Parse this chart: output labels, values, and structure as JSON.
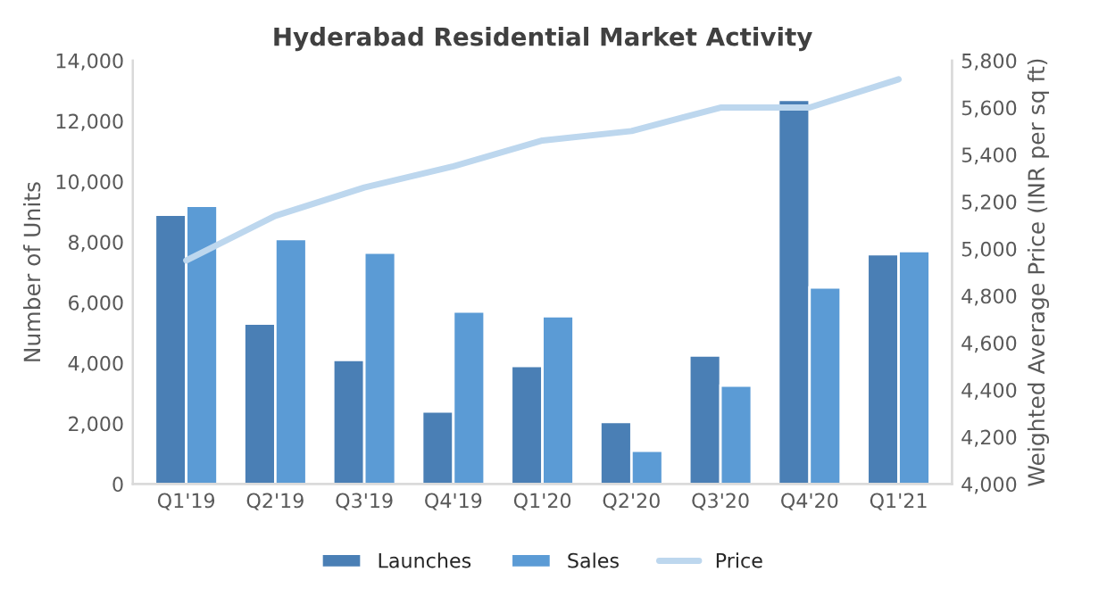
{
  "chart_data": {
    "type": "bar",
    "title": "Hyderabad Residential Market Activity",
    "ylabel": "Number of Units",
    "y2label": "Weighted Average Price (INR per sq ft)",
    "categories": [
      "Q1'19",
      "Q2'19",
      "Q3'19",
      "Q4'19",
      "Q1'20",
      "Q2'20",
      "Q3'20",
      "Q4'20",
      "Q1'21"
    ],
    "series": [
      {
        "name": "Launches",
        "color": "#4a7fb5",
        "values": [
          8900,
          5300,
          4100,
          2400,
          3900,
          2050,
          4250,
          12700,
          7600
        ]
      },
      {
        "name": "Sales",
        "color": "#5b9bd5",
        "values": [
          9200,
          8100,
          7650,
          5700,
          5550,
          1100,
          3250,
          6500,
          7700
        ]
      },
      {
        "name": "Price",
        "type": "line",
        "axis": "y2",
        "color": "#bdd7ee",
        "values": [
          4950,
          5140,
          5260,
          5350,
          5460,
          5500,
          5600,
          5600,
          5720
        ]
      }
    ],
    "ylim": [
      0,
      14000
    ],
    "yticks": [
      {
        "value": 0,
        "label": "0"
      },
      {
        "value": 2000,
        "label": "2,000"
      },
      {
        "value": 4000,
        "label": "4,000"
      },
      {
        "value": 6000,
        "label": "6,000"
      },
      {
        "value": 8000,
        "label": "8,000"
      },
      {
        "value": 10000,
        "label": "10,000"
      },
      {
        "value": 12000,
        "label": "12,000"
      },
      {
        "value": 14000,
        "label": "14,000"
      }
    ],
    "y2lim": [
      4000,
      5800
    ],
    "y2ticks": [
      {
        "value": 4000,
        "label": "4,000"
      },
      {
        "value": 4200,
        "label": "4,200"
      },
      {
        "value": 4400,
        "label": "4,400"
      },
      {
        "value": 4600,
        "label": "4,600"
      },
      {
        "value": 4800,
        "label": "4,800"
      },
      {
        "value": 5000,
        "label": "5,000"
      },
      {
        "value": 5200,
        "label": "5,200"
      },
      {
        "value": 5400,
        "label": "5,400"
      },
      {
        "value": 5600,
        "label": "5,600"
      },
      {
        "value": 5800,
        "label": "5,800"
      }
    ],
    "legend": "bottom",
    "grid": false
  }
}
